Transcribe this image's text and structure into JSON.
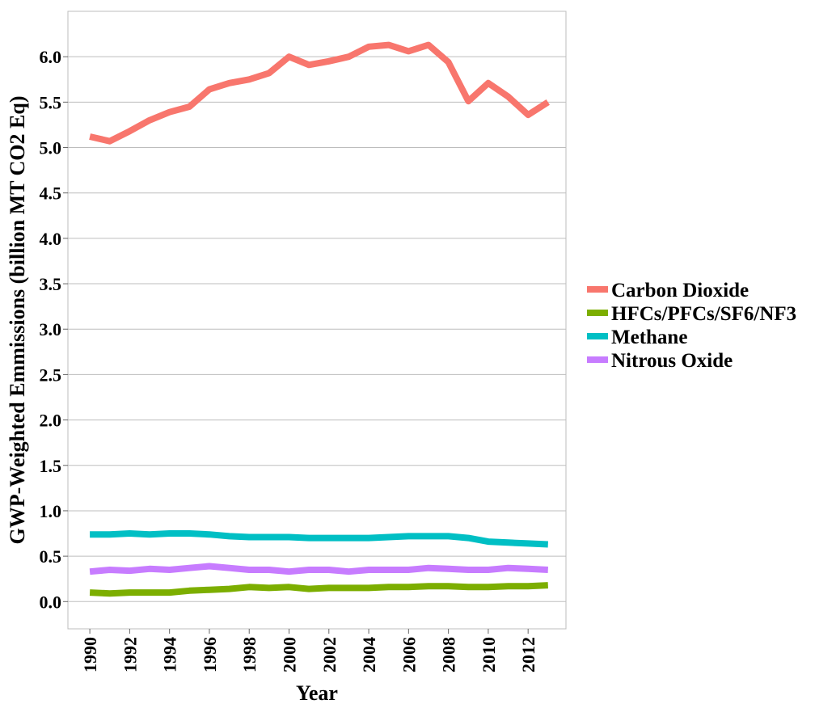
{
  "chart_data": {
    "type": "line",
    "title": "",
    "xlabel": "Year",
    "ylabel": "GWP-Weighted Emmissions (billion MT CO2 Eq)",
    "xlim": [
      1988.9,
      2013.9
    ],
    "ylim": [
      -0.3,
      6.5
    ],
    "x_ticks": [
      1990,
      1992,
      1994,
      1996,
      1998,
      2000,
      2002,
      2004,
      2006,
      2008,
      2010,
      2012
    ],
    "x_tick_labels": [
      "1990",
      "1992",
      "1994",
      "1996",
      "1998",
      "2000",
      "2002",
      "2004",
      "2006",
      "2008",
      "2010",
      "2012"
    ],
    "y_ticks": [
      0.0,
      0.5,
      1.0,
      1.5,
      2.0,
      2.5,
      3.0,
      3.5,
      4.0,
      4.5,
      5.0,
      5.5,
      6.0
    ],
    "y_tick_labels": [
      "0.0",
      "0.5",
      "1.0",
      "1.5",
      "2.0",
      "2.5",
      "3.0",
      "3.5",
      "4.0",
      "4.5",
      "5.0",
      "5.5",
      "6.0"
    ],
    "grid": true,
    "legend_position": "right",
    "x": [
      1990,
      1991,
      1992,
      1993,
      1994,
      1995,
      1996,
      1997,
      1998,
      1999,
      2000,
      2001,
      2002,
      2003,
      2004,
      2005,
      2006,
      2007,
      2008,
      2009,
      2010,
      2011,
      2012,
      2013
    ],
    "series": [
      {
        "name": "Carbon Dioxide",
        "color": "#F8766D",
        "values": [
          5.12,
          5.07,
          5.18,
          5.3,
          5.39,
          5.45,
          5.64,
          5.71,
          5.75,
          5.82,
          6.0,
          5.91,
          5.95,
          6.0,
          6.11,
          6.13,
          6.06,
          6.13,
          5.94,
          5.51,
          5.71,
          5.56,
          5.36,
          5.5
        ]
      },
      {
        "name": "HFCs/PFCs/SF6/NF3",
        "color": "#7CAE00",
        "values": [
          0.1,
          0.09,
          0.1,
          0.1,
          0.1,
          0.12,
          0.13,
          0.14,
          0.16,
          0.15,
          0.16,
          0.14,
          0.15,
          0.15,
          0.15,
          0.16,
          0.16,
          0.17,
          0.17,
          0.16,
          0.16,
          0.17,
          0.17,
          0.18
        ]
      },
      {
        "name": "Methane",
        "color": "#00BFC4",
        "values": [
          0.74,
          0.74,
          0.75,
          0.74,
          0.75,
          0.75,
          0.74,
          0.72,
          0.71,
          0.71,
          0.71,
          0.7,
          0.7,
          0.7,
          0.7,
          0.71,
          0.72,
          0.72,
          0.72,
          0.7,
          0.66,
          0.65,
          0.64,
          0.63
        ]
      },
      {
        "name": "Nitrous Oxide",
        "color": "#C77CFF",
        "values": [
          0.33,
          0.35,
          0.34,
          0.36,
          0.35,
          0.37,
          0.39,
          0.37,
          0.35,
          0.35,
          0.33,
          0.35,
          0.35,
          0.33,
          0.35,
          0.35,
          0.35,
          0.37,
          0.36,
          0.35,
          0.35,
          0.37,
          0.36,
          0.35
        ]
      }
    ]
  }
}
